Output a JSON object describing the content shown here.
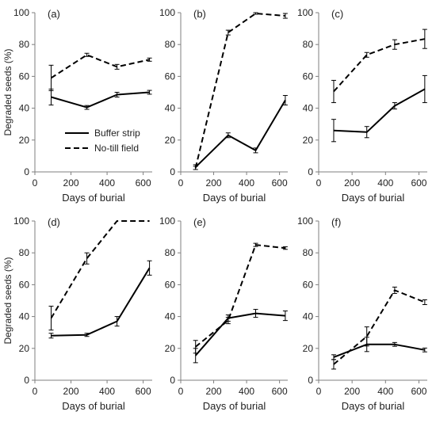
{
  "chart_data": [
    {
      "panel_label": "(a)",
      "type": "line",
      "xlabel": "Days of burial",
      "ylabel": "Degraded seeds (%)",
      "xlim": [
        0,
        650
      ],
      "ylim": [
        0,
        100
      ],
      "xticks": [
        0,
        200,
        400,
        600
      ],
      "yticks": [
        0,
        20,
        40,
        60,
        80,
        100
      ],
      "series": [
        {
          "name": "Buffer strip",
          "style": "solid",
          "x": [
            90,
            288,
            455,
            635
          ],
          "y": [
            47,
            40.5,
            48.5,
            50
          ],
          "err": [
            5,
            1.2,
            1.5,
            1.2
          ]
        },
        {
          "name": "No-till field",
          "style": "dashed",
          "x": [
            90,
            288,
            455,
            635
          ],
          "y": [
            59,
            73.5,
            66,
            70.5
          ],
          "err": [
            8,
            1,
            1.5,
            1
          ]
        }
      ],
      "legend": "center"
    },
    {
      "panel_label": "(b)",
      "type": "line",
      "xlabel": "Days of burial",
      "ylabel": "",
      "xlim": [
        0,
        650
      ],
      "ylim": [
        0,
        100
      ],
      "xticks": [
        0,
        200,
        400,
        600
      ],
      "yticks": [
        0,
        20,
        40,
        60,
        80,
        100
      ],
      "series": [
        {
          "name": "Buffer strip",
          "style": "solid",
          "x": [
            90,
            288,
            455,
            635
          ],
          "y": [
            3,
            23,
            13.5,
            45
          ],
          "err": [
            1.5,
            1.5,
            1.5,
            3
          ]
        },
        {
          "name": "No-till field",
          "style": "dashed",
          "x": [
            90,
            288,
            455,
            635
          ],
          "y": [
            2.5,
            87.5,
            99.5,
            98
          ],
          "err": [
            1,
            1.5,
            0.5,
            1.5
          ]
        }
      ]
    },
    {
      "panel_label": "(c)",
      "type": "line",
      "xlabel": "Days of burial",
      "ylabel": "",
      "xlim": [
        0,
        650
      ],
      "ylim": [
        0,
        100
      ],
      "xticks": [
        0,
        200,
        400,
        600
      ],
      "yticks": [
        0,
        20,
        40,
        60,
        80,
        100
      ],
      "series": [
        {
          "name": "Buffer strip",
          "style": "solid",
          "x": [
            90,
            288,
            455,
            635
          ],
          "y": [
            26,
            25,
            41.5,
            52
          ],
          "err": [
            7,
            3.5,
            2,
            8.5
          ]
        },
        {
          "name": "No-till field",
          "style": "dashed",
          "x": [
            90,
            288,
            455,
            635
          ],
          "y": [
            50.5,
            73.5,
            80,
            83.5
          ],
          "err": [
            7,
            1.5,
            3,
            6
          ]
        }
      ]
    },
    {
      "panel_label": "(d)",
      "type": "line",
      "xlabel": "Days of burial",
      "ylabel": "Degraded seeds (%)",
      "xlim": [
        0,
        650
      ],
      "ylim": [
        0,
        100
      ],
      "xticks": [
        0,
        200,
        400,
        600
      ],
      "yticks": [
        0,
        20,
        40,
        60,
        80,
        100
      ],
      "series": [
        {
          "name": "Buffer strip",
          "style": "solid",
          "x": [
            90,
            288,
            455,
            635
          ],
          "y": [
            28,
            28.5,
            37,
            70.5
          ],
          "err": [
            1.5,
            1,
            3,
            4.5
          ]
        },
        {
          "name": "No-till field",
          "style": "dashed",
          "x": [
            90,
            288,
            455,
            635
          ],
          "y": [
            39,
            76.5,
            100,
            100
          ],
          "err": [
            7.5,
            3.5,
            0,
            0
          ]
        }
      ]
    },
    {
      "panel_label": "(e)",
      "type": "line",
      "xlabel": "Days of burial",
      "ylabel": "",
      "xlim": [
        0,
        650
      ],
      "ylim": [
        0,
        100
      ],
      "xticks": [
        0,
        200,
        400,
        600
      ],
      "yticks": [
        0,
        20,
        40,
        60,
        80,
        100
      ],
      "series": [
        {
          "name": "Buffer strip",
          "style": "solid",
          "x": [
            90,
            288,
            455,
            635
          ],
          "y": [
            15.5,
            39,
            42,
            40.5
          ],
          "err": [
            4.5,
            2,
            2.5,
            3
          ]
        },
        {
          "name": "No-till field",
          "style": "dashed",
          "x": [
            90,
            288,
            455,
            635
          ],
          "y": [
            21,
            37.5,
            85,
            83
          ],
          "err": [
            4,
            2,
            1,
            0.8
          ]
        }
      ]
    },
    {
      "panel_label": "(f)",
      "type": "line",
      "xlabel": "Days of burial",
      "ylabel": "",
      "xlim": [
        0,
        650
      ],
      "ylim": [
        0,
        100
      ],
      "xticks": [
        0,
        200,
        400,
        600
      ],
      "yticks": [
        0,
        20,
        40,
        60,
        80,
        100
      ],
      "series": [
        {
          "name": "Buffer strip",
          "style": "solid",
          "x": [
            90,
            288,
            455,
            635
          ],
          "y": [
            14.5,
            22.5,
            22.5,
            19
          ],
          "err": [
            1.5,
            4.5,
            1.2,
            1.2
          ]
        },
        {
          "name": "No-till field",
          "style": "dashed",
          "x": [
            90,
            288,
            455,
            635
          ],
          "y": [
            10,
            27.5,
            56.5,
            49
          ],
          "err": [
            3,
            6,
            2,
            1.5
          ]
        }
      ]
    }
  ]
}
